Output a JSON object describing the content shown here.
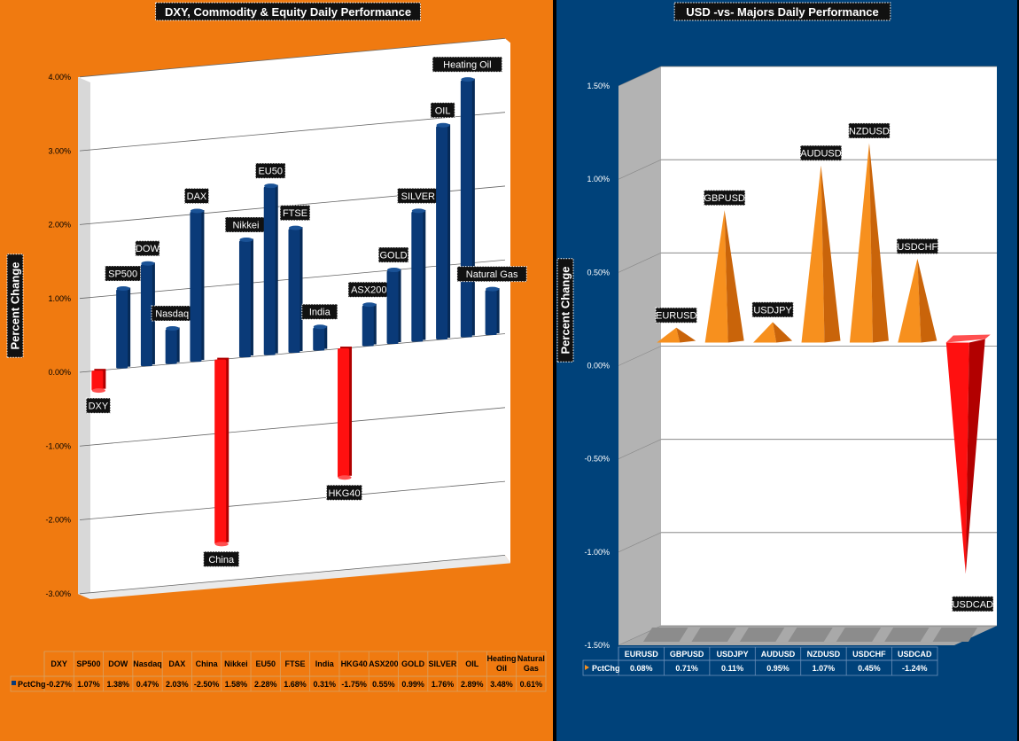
{
  "left_panel": {
    "title": "DXY, Commodity & Equity Daily Performance",
    "background": "#f07a10",
    "positive_color": "#0a3a78",
    "negative_color": "#ff1010"
  },
  "right_panel": {
    "title": "USD -vs- Majors Daily Performance",
    "background": "#00427a",
    "positive_color": "#f7901e",
    "negative_color": "#ff1010"
  },
  "chart_data": [
    {
      "type": "bar",
      "title": "DXY, Commodity & Equity Daily Performance",
      "ylabel": "Percent Change",
      "ylim": [
        -3,
        4
      ],
      "yticks": [
        4,
        3,
        2,
        1,
        0,
        -1,
        -2,
        -3
      ],
      "ytick_labels": [
        "4.00%",
        "3.00%",
        "2.00%",
        "1.00%",
        "0.00%",
        "-1.00%",
        "-2.00%",
        "-3.00%"
      ],
      "categories": [
        "DXY",
        "SP500",
        "DOW",
        "Nasdaq",
        "DAX",
        "China",
        "Nikkei",
        "EU50",
        "FTSE",
        "India",
        "HKG40",
        "ASX200",
        "GOLD",
        "SILVER",
        "OIL",
        "Heating Oil",
        "Natural Gas"
      ],
      "series": [
        {
          "name": "PctChg",
          "values": [
            -0.27,
            1.07,
            1.38,
            0.47,
            2.03,
            -2.5,
            1.58,
            2.28,
            1.68,
            0.31,
            -1.75,
            0.55,
            0.99,
            1.76,
            2.89,
            3.48,
            0.61
          ],
          "value_labels": [
            "-0.27%",
            "1.07%",
            "1.38%",
            "0.47%",
            "2.03%",
            "-2.50%",
            "1.58%",
            "2.28%",
            "1.68%",
            "0.31%",
            "-1.75%",
            "0.55%",
            "0.99%",
            "1.76%",
            "2.89%",
            "3.48%",
            "0.61%"
          ]
        }
      ],
      "table_series_label": "PctChg",
      "table_header_lines": [
        [
          "DXY"
        ],
        [
          "SP500"
        ],
        [
          "DOW"
        ],
        [
          "Nasdaq"
        ],
        [
          "DAX"
        ],
        [
          "China"
        ],
        [
          "Nikkei"
        ],
        [
          "EU50"
        ],
        [
          "FTSE"
        ],
        [
          "India"
        ],
        [
          "HKG40"
        ],
        [
          "ASX200"
        ],
        [
          "GOLD"
        ],
        [
          "SILVER"
        ],
        [
          "OIL"
        ],
        [
          "Heating",
          "Oil"
        ],
        [
          "Natural",
          "Gas"
        ]
      ]
    },
    {
      "type": "bar",
      "title": "USD -vs- Majors Daily Performance",
      "ylabel": "Percent Change",
      "ylim": [
        -1.5,
        1.5
      ],
      "yticks": [
        1.5,
        1,
        0.5,
        0,
        -0.5,
        -1,
        -1.5
      ],
      "ytick_labels": [
        "1.50%",
        "1.00%",
        "0.50%",
        "0.00%",
        "-0.50%",
        "-1.00%",
        "-1.50%"
      ],
      "categories": [
        "EURUSD",
        "GBPUSD",
        "USDJPY",
        "AUDUSD",
        "NZDUSD",
        "USDCHF",
        "USDCAD"
      ],
      "series": [
        {
          "name": "PctChg",
          "values": [
            0.08,
            0.71,
            0.11,
            0.95,
            1.07,
            0.45,
            -1.24
          ],
          "value_labels": [
            "0.08%",
            "0.71%",
            "0.11%",
            "0.95%",
            "1.07%",
            "0.45%",
            "-1.24%"
          ]
        }
      ],
      "table_series_label": "PctChg"
    }
  ]
}
